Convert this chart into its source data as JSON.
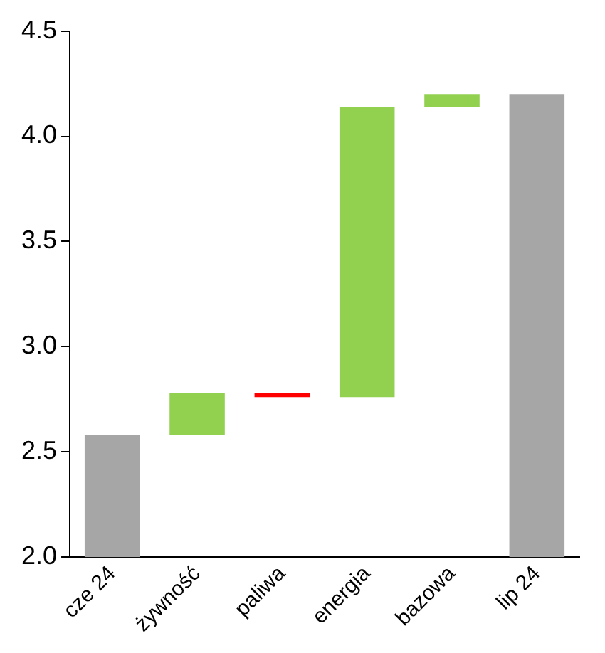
{
  "chart_data": {
    "type": "bar",
    "categories": [
      "cze 24",
      "żywność",
      "paliwa",
      "energia",
      "bazowa",
      "lip 24"
    ],
    "values": [
      0.58,
      0.2,
      -0.02,
      1.38,
      0.06,
      2.2
    ],
    "base": [
      2.0,
      2.58,
      2.78,
      2.76,
      4.14,
      2.0
    ],
    "colors": [
      "#a6a6a6",
      "#92d050",
      "#ff0000",
      "#92d050",
      "#92d050",
      "#a6a6a6"
    ],
    "ylim": [
      2.0,
      4.5
    ],
    "yticks": [
      {
        "value": 2.0,
        "label": "2.0"
      },
      {
        "value": 2.5,
        "label": "2.5"
      },
      {
        "value": 3.0,
        "label": "3.0"
      },
      {
        "value": 3.5,
        "label": "3.5"
      },
      {
        "value": 4.0,
        "label": "4.0"
      },
      {
        "value": 4.5,
        "label": "4.5"
      }
    ],
    "grid": false,
    "legend": false
  }
}
